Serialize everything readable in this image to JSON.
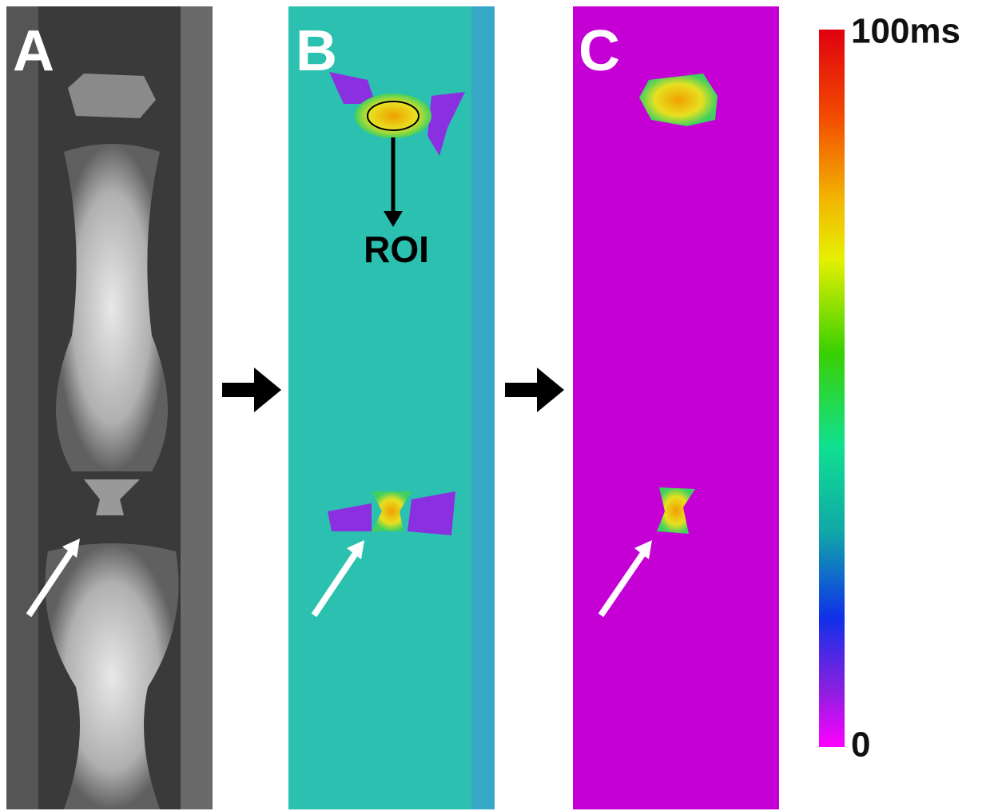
{
  "panels": [
    {
      "label": "A"
    },
    {
      "label": "B",
      "annotation": "ROI"
    },
    {
      "label": "C"
    }
  ],
  "colorbar": {
    "max_label": "100ms",
    "min_label": "0"
  }
}
